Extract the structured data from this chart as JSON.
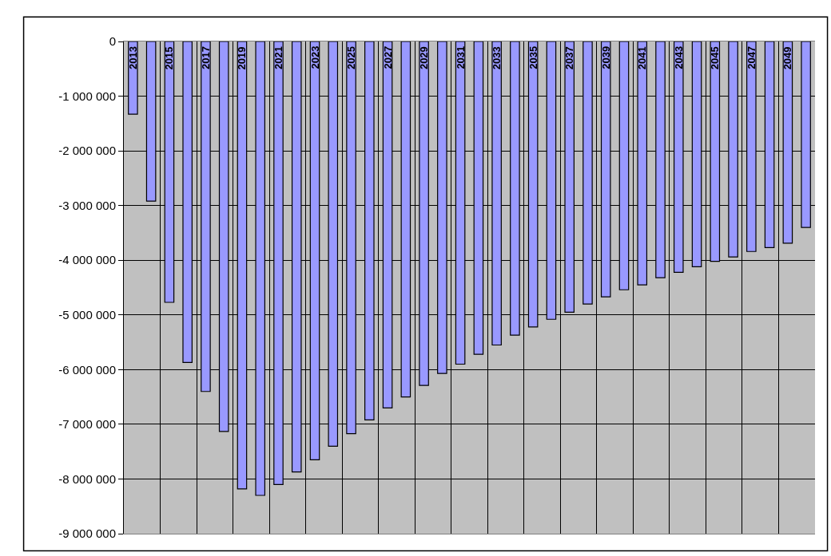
{
  "chart_data": {
    "type": "bar",
    "categories": [
      "2013",
      null,
      "2015",
      null,
      "2017",
      null,
      "2019",
      null,
      "2021",
      null,
      "2023",
      null,
      "2025",
      null,
      "2027",
      null,
      "2029",
      null,
      "2031",
      null,
      "2033",
      null,
      "2035",
      null,
      "2037",
      null,
      "2039",
      null,
      "2041",
      null,
      "2043",
      null,
      "2045",
      null,
      "2047",
      null,
      "2049",
      null
    ],
    "values": [
      -1330000,
      -2920000,
      -4770000,
      -5870000,
      -6400000,
      -7130000,
      -8180000,
      -8300000,
      -8100000,
      -7870000,
      -7650000,
      -7400000,
      -7170000,
      -6920000,
      -6700000,
      -6500000,
      -6290000,
      -6070000,
      -5900000,
      -5720000,
      -5550000,
      -5370000,
      -5220000,
      -5080000,
      -4950000,
      -4800000,
      -4670000,
      -4540000,
      -4450000,
      -4320000,
      -4220000,
      -4120000,
      -4020000,
      -3940000,
      -3840000,
      -3770000,
      -3690000,
      -3400000
    ],
    "color": "#9999ff",
    "ylim": [
      -9000000,
      0
    ],
    "yticks": [
      0,
      {
        "value": -1000000,
        "label": "-1 000 000"
      },
      {
        "value": -2000000,
        "label": "-2 000 000"
      },
      {
        "value": -3000000,
        "label": "-3 000 000"
      },
      {
        "value": -4000000,
        "label": "-4 000 000"
      },
      {
        "value": -5000000,
        "label": "-5 000 000"
      },
      {
        "value": -6000000,
        "label": "-6 000 000"
      },
      {
        "value": -7000000,
        "label": "-7 000 000"
      },
      {
        "value": -8000000,
        "label": "-8 000 000"
      },
      {
        "value": -9000000,
        "label": "-9 000 000"
      }
    ],
    "grid": true
  }
}
